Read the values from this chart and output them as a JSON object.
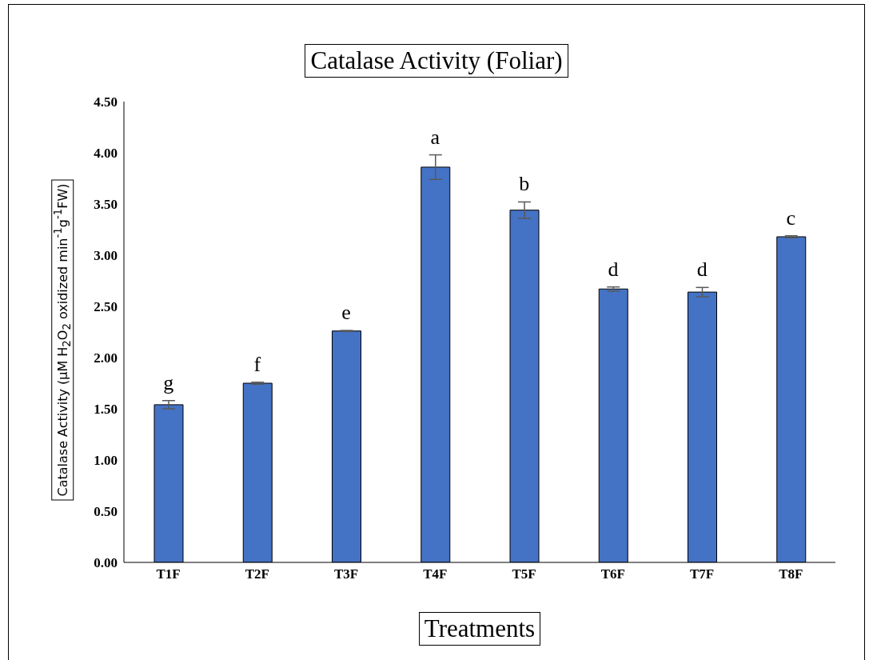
{
  "chart_data": {
    "type": "bar",
    "title": "Catalase Activity (Foliar)",
    "xlabel": "Treatments",
    "ylabel": "Catalase  Activity  (μM H$_{2}$O$_{2}$ oxidized min$^{-1}$g$^{-1}$FW)",
    "categories": [
      "T1F",
      "T2F",
      "T3F",
      "T4F",
      "T5F",
      "T6F",
      "T7F",
      "T8F"
    ],
    "values": [
      1.54,
      1.75,
      2.26,
      3.86,
      3.44,
      2.67,
      2.64,
      3.18
    ],
    "errors": [
      0.04,
      0.01,
      0.005,
      0.12,
      0.08,
      0.02,
      0.045,
      0.01
    ],
    "color": "#4472c4",
    "ylim": [
      0,
      4.5
    ],
    "yticks": [
      {
        "value": 0,
        "label": "0.00"
      },
      {
        "value": 0.5,
        "label": "0.50"
      },
      {
        "value": 1,
        "label": "1.00"
      },
      {
        "value": 1.5,
        "label": "1.50"
      },
      {
        "value": 2,
        "label": "2.00"
      },
      {
        "value": 2.5,
        "label": "2.50"
      },
      {
        "value": 3,
        "label": "3.00"
      },
      {
        "value": 3.5,
        "label": "3.50"
      },
      {
        "value": 4,
        "label": "4.00"
      },
      {
        "value": 4.5,
        "label": "4.50"
      }
    ],
    "annotations": [
      {
        "text": "g",
        "x": "T1F",
        "y": 1.54
      },
      {
        "text": "f",
        "x": "T2F",
        "y": 1.75
      },
      {
        "text": "e",
        "x": "T3F",
        "y": 2.26
      },
      {
        "text": "a",
        "x": "T4F",
        "y": 3.86
      },
      {
        "text": "b",
        "x": "T5F",
        "y": 3.44
      },
      {
        "text": "d",
        "x": "T6F",
        "y": 2.67
      },
      {
        "text": "d",
        "x": "T7F",
        "y": 2.64
      },
      {
        "text": "c",
        "x": "T8F",
        "y": 3.18
      }
    ],
    "grid": false,
    "legend": false
  }
}
